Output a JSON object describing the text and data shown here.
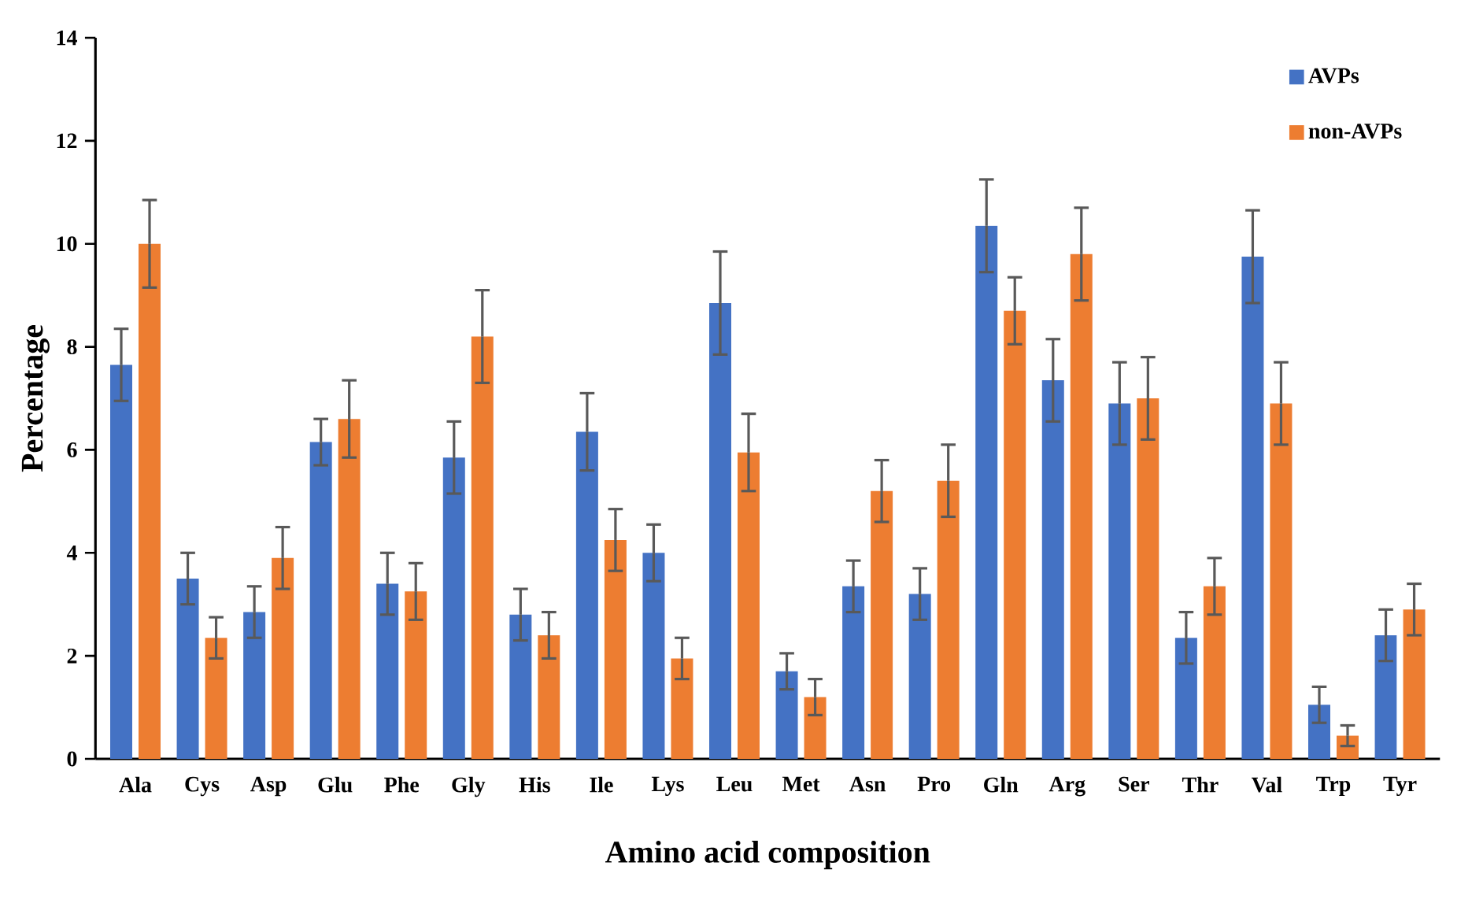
{
  "chart_data": {
    "type": "bar",
    "xlabel": "Amino acid composition",
    "ylabel": "Percentage",
    "categories": [
      "Ala",
      "Cys",
      "Asp",
      "Glu",
      "Phe",
      "Gly",
      "His",
      "Ile",
      "Lys",
      "Leu",
      "Met",
      "Asn",
      "Pro",
      "Gln",
      "Arg",
      "Ser",
      "Thr",
      "Val",
      "Trp",
      "Tyr"
    ],
    "series": [
      {
        "name": "AVPs",
        "color": "#4472c4",
        "values": [
          7.65,
          3.5,
          2.85,
          6.15,
          3.4,
          5.85,
          2.8,
          6.35,
          4.0,
          8.85,
          1.7,
          3.35,
          3.2,
          10.35,
          7.35,
          6.9,
          2.35,
          9.75,
          1.05,
          2.4
        ],
        "errors": [
          0.7,
          0.5,
          0.5,
          0.45,
          0.6,
          0.7,
          0.5,
          0.75,
          0.55,
          1.0,
          0.35,
          0.5,
          0.5,
          0.9,
          0.8,
          0.8,
          0.5,
          0.9,
          0.35,
          0.5
        ]
      },
      {
        "name": "non-AVPs",
        "color": "#ed7d31",
        "values": [
          10.0,
          2.35,
          3.9,
          6.6,
          3.25,
          8.2,
          2.4,
          4.25,
          1.95,
          5.95,
          1.2,
          5.2,
          5.4,
          8.7,
          9.8,
          7.0,
          3.35,
          6.9,
          0.45,
          2.9
        ],
        "errors": [
          0.85,
          0.4,
          0.6,
          0.75,
          0.55,
          0.9,
          0.45,
          0.6,
          0.4,
          0.75,
          0.35,
          0.6,
          0.7,
          0.65,
          0.9,
          0.8,
          0.55,
          0.8,
          0.2,
          0.5
        ]
      }
    ],
    "ylim": [
      0,
      14
    ],
    "yticks": [
      0,
      2,
      4,
      6,
      8,
      10,
      12,
      14
    ],
    "grid": false,
    "legend": "top right"
  }
}
